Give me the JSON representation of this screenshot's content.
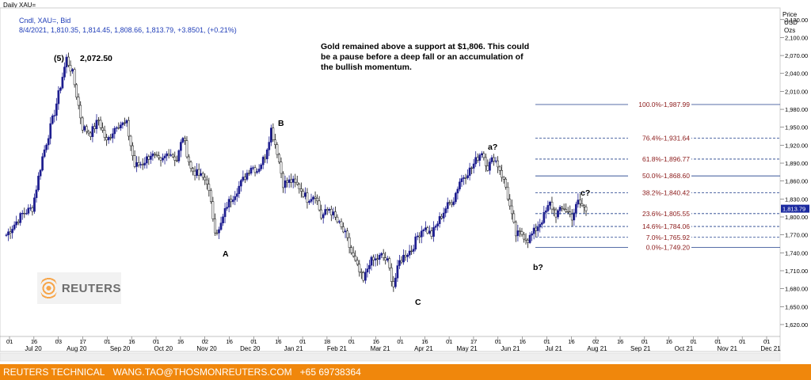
{
  "window_title": "Daily XAU=",
  "footer": {
    "brand": "REUTERS TECHNICAL",
    "email": "WANG.TAO@THOSMONREUTERS.COM",
    "phone": "+65 69738364"
  },
  "logo": {
    "text": "REUTERS"
  },
  "chart_data": {
    "type": "candlestick",
    "instrument": "Cndl, XAU=, Bid",
    "info_line": "8/4/2021, 1,810.35, 1,814.45, 1,808.66, 1,813.79, +3.8501, (+0.21%)",
    "axis_title": [
      "Price",
      "USD",
      "Ozs"
    ],
    "ylim": [
      1612,
      2148
    ],
    "yticks": [
      "2,130.00",
      "2,100.00",
      "2,070.00",
      "2,040.00",
      "2,010.00",
      "1,980.00",
      "1,950.00",
      "1,920.00",
      "1,890.00",
      "1,860.00",
      "1,830.00",
      "1,800.00",
      "1,770.00",
      "1,740.00",
      "1,710.00",
      "1,680.00",
      "1,650.00",
      "1,620.00"
    ],
    "ytick_values": [
      2130,
      2100,
      2070,
      2040,
      2010,
      1980,
      1950,
      1920,
      1890,
      1860,
      1830,
      1800,
      1770,
      1740,
      1710,
      1680,
      1650,
      1620
    ],
    "last_price_label": "1,813.79",
    "x_dates": [
      "01",
      "16",
      "03",
      "17",
      "01",
      "16",
      "01",
      "16",
      "02",
      "16",
      "01",
      "16",
      "01",
      "18",
      "01",
      "16",
      "01",
      "16",
      "01",
      "17",
      "01",
      "16",
      "01",
      "16",
      "02",
      "16",
      "01",
      "16",
      "01",
      "01",
      "01",
      "01"
    ],
    "x_months": [
      "Jul 20",
      "Aug 20",
      "Sep 20",
      "Oct 20",
      "Nov 20",
      "Dec 20",
      "Jan 21",
      "Feb 21",
      "Mar 21",
      "Apr 21",
      "May 21",
      "Jun 21",
      "Jul 21",
      "Aug 21",
      "Sep 21",
      "Oct 21",
      "Nov 21",
      "Dec 21"
    ],
    "price_path": [
      {
        "bar": 0,
        "price": 1770
      },
      {
        "bar": 8,
        "price": 1805
      },
      {
        "bar": 13,
        "price": 1815
      },
      {
        "bar": 18,
        "price": 1900
      },
      {
        "bar": 24,
        "price": 1975
      },
      {
        "bar": 30,
        "price": 2065
      },
      {
        "bar": 33,
        "price": 2040
      },
      {
        "bar": 38,
        "price": 1950
      },
      {
        "bar": 42,
        "price": 1940
      },
      {
        "bar": 46,
        "price": 1962
      },
      {
        "bar": 50,
        "price": 1925
      },
      {
        "bar": 55,
        "price": 1955
      },
      {
        "bar": 60,
        "price": 1955
      },
      {
        "bar": 64,
        "price": 1885
      },
      {
        "bar": 68,
        "price": 1890
      },
      {
        "bar": 72,
        "price": 1905
      },
      {
        "bar": 77,
        "price": 1890
      },
      {
        "bar": 81,
        "price": 1910
      },
      {
        "bar": 85,
        "price": 1895
      },
      {
        "bar": 88,
        "price": 1935
      },
      {
        "bar": 92,
        "price": 1880
      },
      {
        "bar": 96,
        "price": 1870
      },
      {
        "bar": 100,
        "price": 1860
      },
      {
        "bar": 104,
        "price": 1780
      },
      {
        "bar": 106,
        "price": 1776
      },
      {
        "bar": 110,
        "price": 1820
      },
      {
        "bar": 114,
        "price": 1840
      },
      {
        "bar": 118,
        "price": 1862
      },
      {
        "bar": 122,
        "price": 1885
      },
      {
        "bar": 125,
        "price": 1878
      },
      {
        "bar": 129,
        "price": 1902
      },
      {
        "bar": 132,
        "price": 1947
      },
      {
        "bar": 135,
        "price": 1910
      },
      {
        "bar": 138,
        "price": 1856
      },
      {
        "bar": 142,
        "price": 1860
      },
      {
        "bar": 146,
        "price": 1850
      },
      {
        "bar": 150,
        "price": 1830
      },
      {
        "bar": 154,
        "price": 1838
      },
      {
        "bar": 157,
        "price": 1800
      },
      {
        "bar": 161,
        "price": 1814
      },
      {
        "bar": 165,
        "price": 1792
      },
      {
        "bar": 169,
        "price": 1770
      },
      {
        "bar": 172,
        "price": 1740
      },
      {
        "bar": 175,
        "price": 1715
      },
      {
        "bar": 178,
        "price": 1692
      },
      {
        "bar": 181,
        "price": 1725
      },
      {
        "bar": 184,
        "price": 1728
      },
      {
        "bar": 187,
        "price": 1735
      },
      {
        "bar": 190,
        "price": 1725
      },
      {
        "bar": 193,
        "price": 1685
      },
      {
        "bar": 196,
        "price": 1725
      },
      {
        "bar": 199,
        "price": 1738
      },
      {
        "bar": 202,
        "price": 1745
      },
      {
        "bar": 205,
        "price": 1768
      },
      {
        "bar": 208,
        "price": 1783
      },
      {
        "bar": 212,
        "price": 1770
      },
      {
        "bar": 215,
        "price": 1790
      },
      {
        "bar": 219,
        "price": 1815
      },
      {
        "bar": 223,
        "price": 1830
      },
      {
        "bar": 226,
        "price": 1860
      },
      {
        "bar": 229,
        "price": 1872
      },
      {
        "bar": 232,
        "price": 1882
      },
      {
        "bar": 235,
        "price": 1900
      },
      {
        "bar": 237,
        "price": 1910
      },
      {
        "bar": 240,
        "price": 1883
      },
      {
        "bar": 243,
        "price": 1900
      },
      {
        "bar": 246,
        "price": 1880
      },
      {
        "bar": 249,
        "price": 1850
      },
      {
        "bar": 252,
        "price": 1800
      },
      {
        "bar": 254,
        "price": 1770
      },
      {
        "bar": 257,
        "price": 1772
      },
      {
        "bar": 260,
        "price": 1762
      },
      {
        "bar": 263,
        "price": 1775
      },
      {
        "bar": 267,
        "price": 1795
      },
      {
        "bar": 271,
        "price": 1822
      },
      {
        "bar": 274,
        "price": 1805
      },
      {
        "bar": 278,
        "price": 1815
      },
      {
        "bar": 282,
        "price": 1800
      },
      {
        "bar": 285,
        "price": 1825
      },
      {
        "bar": 289,
        "price": 1812
      }
    ],
    "fib_levels": [
      {
        "label": "100.0%-1,987.99",
        "value": 1987.99,
        "style": "solid"
      },
      {
        "label": "76.4%-1,931.64",
        "value": 1931.64,
        "style": "dashed"
      },
      {
        "label": "61.8%-1,896.77",
        "value": 1896.77,
        "style": "dashed"
      },
      {
        "label": "50.0%-1,868.60",
        "value": 1868.6,
        "style": "solid"
      },
      {
        "label": "38.2%-1,840.42",
        "value": 1840.42,
        "style": "dashed"
      },
      {
        "label": "23.6%-1,805.55",
        "value": 1805.55,
        "style": "dashed"
      },
      {
        "label": "14.6%-1,784.06",
        "value": 1784.06,
        "style": "dashed"
      },
      {
        "label": "7.0%-1,765.92",
        "value": 1765.92,
        "style": "dashed"
      },
      {
        "label": "0.0%-1,749.20",
        "value": 1749.2,
        "style": "solid"
      }
    ],
    "annotations": {
      "note": "Gold remained above a support at $1,806. This could be a pause before a deep fall or an accumulation of the  bullish momentum.",
      "wave_5": "(5)",
      "peak_value": "2,072.50",
      "wave_B": "B",
      "wave_A": "A",
      "wave_C": "C",
      "wave_a": "a?",
      "wave_b": "b?",
      "wave_c": "c?"
    },
    "colors": {
      "up": "#1d1d8f",
      "down": "#111111",
      "fib_text": "#8b1a1a",
      "fib_line": "#1f3d8a",
      "info": "#1f3db8"
    }
  }
}
